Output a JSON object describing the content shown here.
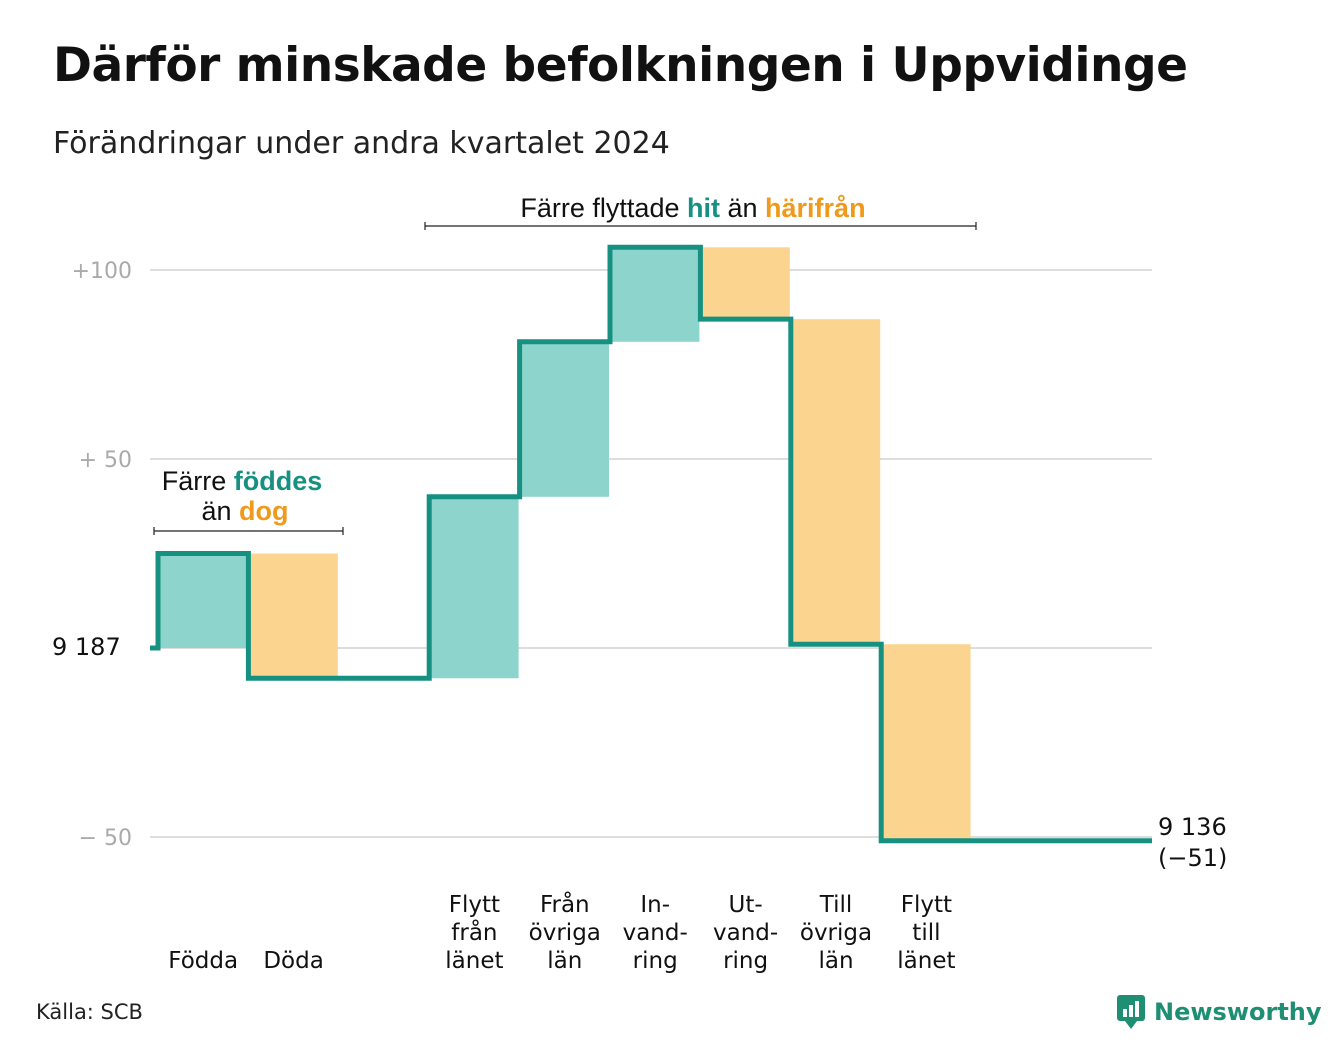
{
  "title": "Därför minskade befolkningen i Uppvidinge",
  "subtitle": "Förändringar under andra kvartalet 2024",
  "source": "Källa: SCB",
  "brand": "Newsworthy",
  "colors": {
    "in": "#8dd5cc",
    "out": "#fbd590",
    "line": "#169080",
    "teal_text": "#169080",
    "orange_text": "#f09a1b",
    "grid": "#dddddd"
  },
  "annotations": {
    "births": {
      "line1_prefix": "Färre ",
      "line1_teal": "föddes",
      "line2_prefix": "än ",
      "line2_orange": "dog"
    },
    "migration": {
      "prefix": "Färre flyttade ",
      "teal": "hit",
      "middle": " än ",
      "orange": "härifrån"
    }
  },
  "chart_data": {
    "type": "waterfall",
    "title": "Därför minskade befolkningen i Uppvidinge",
    "subtitle": "Förändringar under andra kvartalet 2024",
    "baseline": 9187,
    "start_label": "9 187",
    "end_label": "9 136",
    "end_change_label": "(−51)",
    "ylim": [
      -56,
      110
    ],
    "y_ticks": [
      {
        "value": 100,
        "label": "+100"
      },
      {
        "value": 50,
        "label": "+  50"
      },
      {
        "value": 0,
        "label": ""
      },
      {
        "value": -50,
        "label": "−  50"
      }
    ],
    "steps": [
      {
        "lines": [
          "Födda"
        ],
        "value": 25,
        "kind": "in"
      },
      {
        "lines": [
          "Döda"
        ],
        "value": -33,
        "kind": "out"
      },
      {
        "lines": [],
        "value": 0,
        "kind": "gap"
      },
      {
        "lines": [
          "Flytt",
          "från",
          "länet"
        ],
        "value": 48,
        "kind": "in"
      },
      {
        "lines": [
          "Från",
          "övriga",
          "län"
        ],
        "value": 41,
        "kind": "in"
      },
      {
        "lines": [
          "In-",
          "vand-",
          "ring"
        ],
        "value": 25,
        "kind": "in"
      },
      {
        "lines": [
          "Ut-",
          "vand-",
          "ring"
        ],
        "value": -19,
        "kind": "out"
      },
      {
        "lines": [
          "Till",
          "övriga",
          "län"
        ],
        "value": -86,
        "kind": "out"
      },
      {
        "lines": [
          "Flytt",
          "till",
          "länet"
        ],
        "value": -52,
        "kind": "out"
      },
      {
        "lines": [],
        "value": 0,
        "kind": "gap"
      }
    ]
  }
}
